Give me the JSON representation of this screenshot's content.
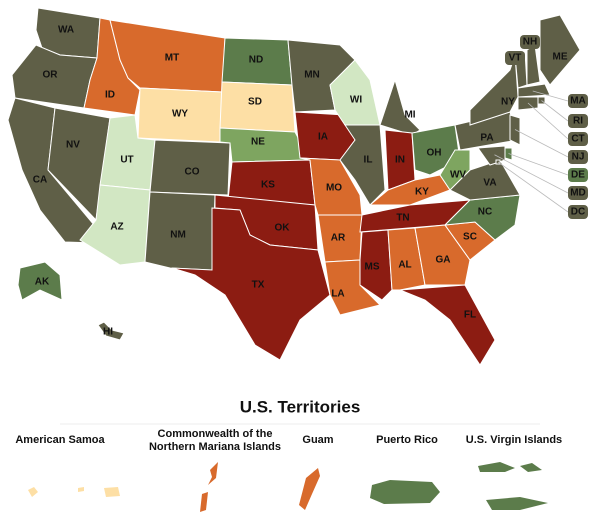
{
  "map": {
    "states": [
      {
        "label": "WA",
        "color": "#5f5f47"
      },
      {
        "label": "OR",
        "color": "#5f5f47"
      },
      {
        "label": "CA",
        "color": "#5f5f47"
      },
      {
        "label": "NV",
        "color": "#5f5f47"
      },
      {
        "label": "ID",
        "color": "#d86a2c"
      },
      {
        "label": "MT",
        "color": "#d86a2c"
      },
      {
        "label": "WY",
        "color": "#fddfa5"
      },
      {
        "label": "UT",
        "color": "#d2e7c3"
      },
      {
        "label": "AZ",
        "color": "#d2e7c3"
      },
      {
        "label": "CO",
        "color": "#5f5f47"
      },
      {
        "label": "NM",
        "color": "#5f5f47"
      },
      {
        "label": "ND",
        "color": "#5c7c4b"
      },
      {
        "label": "SD",
        "color": "#fddfa5"
      },
      {
        "label": "NE",
        "color": "#7ea560"
      },
      {
        "label": "KS",
        "color": "#8c1c12"
      },
      {
        "label": "OK",
        "color": "#8c1c12"
      },
      {
        "label": "TX",
        "color": "#8c1c12"
      },
      {
        "label": "MN",
        "color": "#5f5f47"
      },
      {
        "label": "IA",
        "color": "#8c1c12"
      },
      {
        "label": "MO",
        "color": "#d86a2c"
      },
      {
        "label": "AR",
        "color": "#d86a2c"
      },
      {
        "label": "LA",
        "color": "#d86a2c"
      },
      {
        "label": "WI",
        "color": "#d2e7c3"
      },
      {
        "label": "IL",
        "color": "#5f5f47"
      },
      {
        "label": "MI",
        "color": "#5f5f47"
      },
      {
        "label": "IN",
        "color": "#8c1c12"
      },
      {
        "label": "OH",
        "color": "#5c7c4b"
      },
      {
        "label": "KY",
        "color": "#d86a2c"
      },
      {
        "label": "TN",
        "color": "#8c1c12"
      },
      {
        "label": "MS",
        "color": "#8c1c12"
      },
      {
        "label": "AL",
        "color": "#d86a2c"
      },
      {
        "label": "GA",
        "color": "#d86a2c"
      },
      {
        "label": "FL",
        "color": "#8c1c12"
      },
      {
        "label": "SC",
        "color": "#d86a2c"
      },
      {
        "label": "NC",
        "color": "#5c7c4b"
      },
      {
        "label": "VA",
        "color": "#5f5f47"
      },
      {
        "label": "WV",
        "color": "#7ea560"
      },
      {
        "label": "PA",
        "color": "#5f5f47"
      },
      {
        "label": "NY",
        "color": "#5f5f47"
      },
      {
        "label": "ME",
        "color": "#5f5f47"
      },
      {
        "label": "VT",
        "color": "#5f5f47"
      },
      {
        "label": "NH",
        "color": "#5f5f47"
      },
      {
        "label": "MA",
        "color": "#5f5f47"
      },
      {
        "label": "RI",
        "color": "#5f5f47"
      },
      {
        "label": "CT",
        "color": "#5f5f47"
      },
      {
        "label": "NJ",
        "color": "#5f5f47"
      },
      {
        "label": "DE",
        "color": "#5c7c4b"
      },
      {
        "label": "MD",
        "color": "#5f5f47"
      },
      {
        "label": "DC",
        "color": "#5f5f47"
      },
      {
        "label": "AK",
        "color": "#5c7c4b"
      },
      {
        "label": "HI",
        "color": "#5f5f47"
      }
    ],
    "territories_title": "U.S. Territories",
    "territories": [
      {
        "label": "American Samoa",
        "color": "#fddfa5"
      },
      {
        "label": "Commonwealth of the\nNorthern Mariana Islands",
        "color": "#d86a2c"
      },
      {
        "label": "Guam",
        "color": "#d86a2c"
      },
      {
        "label": "Puerto Rico",
        "color": "#5c7c4b"
      },
      {
        "label": "U.S. Virgin Islands",
        "color": "#5c7c4b"
      }
    ]
  }
}
